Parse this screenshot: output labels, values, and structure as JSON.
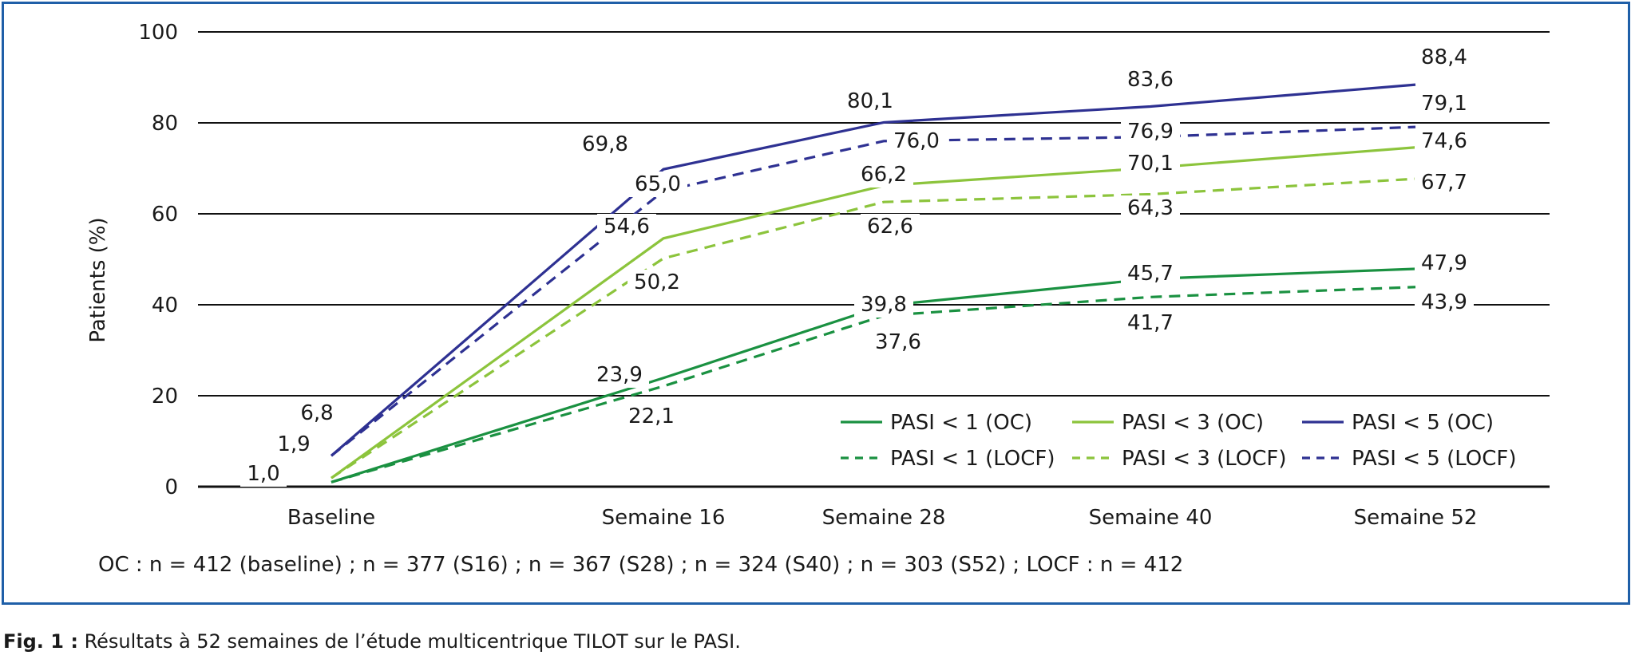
{
  "chart_data": {
    "type": "line",
    "ylabel": "Patients (%)",
    "xlabel": "",
    "ylim": [
      0,
      100
    ],
    "yticks": [
      0,
      20,
      40,
      60,
      80,
      100
    ],
    "categories": [
      "Baseline",
      "Semaine 16",
      "Semaine 28",
      "Semaine 40",
      "Semaine 52"
    ],
    "grid": true,
    "legend_position": "bottom-right",
    "series": [
      {
        "name": "PASI < 1 (OC)",
        "color": "#1a9141",
        "dashed": false,
        "values": [
          1.0,
          23.9,
          39.8,
          45.7,
          47.9
        ],
        "labels": [
          "",
          "23,9",
          "39,8",
          "45,7",
          "47,9"
        ]
      },
      {
        "name": "PASI < 3 (OC)",
        "color": "#8cc43c",
        "dashed": false,
        "values": [
          1.9,
          54.6,
          66.2,
          70.1,
          74.6
        ],
        "labels": [
          "",
          "54,6",
          "66,2",
          "70,1",
          "74,6"
        ]
      },
      {
        "name": "PASI < 5 (OC)",
        "color": "#2e3192",
        "dashed": false,
        "values": [
          6.8,
          69.8,
          80.1,
          83.6,
          88.4
        ],
        "labels": [
          "6,8",
          "69,8",
          "80,1",
          "83,6",
          "88,4"
        ]
      },
      {
        "name": "PASI < 1 (LOCF)",
        "color": "#1a9141",
        "dashed": true,
        "values": [
          1.0,
          22.1,
          37.6,
          41.7,
          43.9
        ],
        "labels": [
          "1,0",
          "22,1",
          "37,6",
          "41,7",
          "43,9"
        ]
      },
      {
        "name": "PASI < 3 (LOCF)",
        "color": "#8cc43c",
        "dashed": true,
        "values": [
          1.9,
          50.2,
          62.6,
          64.3,
          67.7
        ],
        "labels": [
          "1,9",
          "50,2",
          "62,6",
          "64,3",
          "67,7"
        ]
      },
      {
        "name": "PASI < 5 (LOCF)",
        "color": "#2e3192",
        "dashed": true,
        "values": [
          6.8,
          65.0,
          76.0,
          76.9,
          79.1
        ],
        "labels": [
          "",
          "65,0",
          "76,0",
          "76,9",
          "79,1"
        ]
      }
    ]
  },
  "note": "OC : n = 412 (baseline) ; n = 377 (S16) ; n = 367 (S28) ; n = 324 (S40) ; n = 303 (S52) ; LOCF : n = 412",
  "caption": {
    "label": "Fig. 1 :",
    "text": " Résultats à 52 semaines de l’étude multicentrique TILOT sur le PASI."
  }
}
